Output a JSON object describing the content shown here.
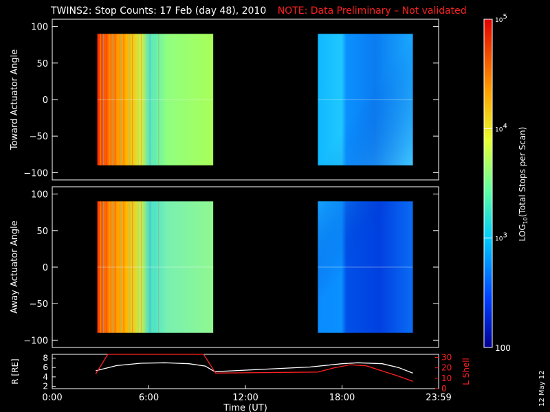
{
  "header": {
    "title": "TWINS2: Stop Counts: 17 Feb (day  48), 2010",
    "note": "NOTE: Data Preliminary – Not validated"
  },
  "stamp": "12 May 12",
  "colors": {
    "note": "#ff2020",
    "ephemeris_r": "#ffffff",
    "ephemeris_lshell": "#ff2020",
    "background": "#000000"
  },
  "chart_data": [
    {
      "type": "heatmap",
      "name": "toward",
      "ylabel": "Toward Actuator Angle",
      "ylim": [
        -110,
        110
      ],
      "y_ticks": [
        "100",
        "50",
        "0",
        "−50",
        "−100"
      ],
      "y_tick_values": [
        100,
        50,
        0,
        -50,
        -100
      ],
      "data_y_range": [
        -90,
        90
      ],
      "x_range_hours": [
        0,
        24
      ],
      "data_blocks_hours": [
        [
          2.8,
          10.0
        ],
        [
          16.5,
          22.4
        ]
      ],
      "blocks": [
        {
          "start": 2.8,
          "end": 10.0,
          "log10_counts_start": 4.85,
          "log10_counts_end": 3.7
        },
        {
          "start": 16.5,
          "end": 22.4,
          "log10_counts_start": 3.25,
          "log10_counts_end": 3.05
        }
      ],
      "log_scale": true
    },
    {
      "type": "heatmap",
      "name": "away",
      "ylabel": "Away Actuator Angle",
      "ylim": [
        -110,
        110
      ],
      "y_ticks": [
        "100",
        "50",
        "0",
        "−50",
        "−100"
      ],
      "y_tick_values": [
        100,
        50,
        0,
        -50,
        -100
      ],
      "data_y_range": [
        -90,
        90
      ],
      "x_range_hours": [
        0,
        24
      ],
      "data_blocks_hours": [
        [
          2.8,
          10.0
        ],
        [
          16.5,
          22.4
        ]
      ],
      "blocks": [
        {
          "start": 2.8,
          "end": 10.0,
          "log10_counts_start": 4.8,
          "log10_counts_end": 3.6
        },
        {
          "start": 16.5,
          "end": 22.4,
          "log10_counts_start": 3.0,
          "log10_counts_end": 2.6
        }
      ],
      "log_scale": true
    },
    {
      "type": "line",
      "name": "ephemeris",
      "ylabel": "R [RE]",
      "y2label": "L Shell",
      "xlabel": "Time (UT)",
      "x_ticks": [
        "0:00",
        "6:00",
        "12:00",
        "18:00",
        "23:59"
      ],
      "x_tick_values": [
        0,
        6,
        12,
        18,
        24
      ],
      "ylim": [
        1.5,
        8.8
      ],
      "y_ticks": [
        "8",
        "6",
        "4",
        "2"
      ],
      "y_tick_values": [
        8,
        6,
        4,
        2
      ],
      "y2lim": [
        0,
        33
      ],
      "y2_ticks": [
        "30",
        "20",
        "10",
        "0"
      ],
      "y2_tick_values": [
        30,
        20,
        10,
        0
      ],
      "series": [
        {
          "name": "R",
          "axis": "left",
          "x": [
            2.7,
            4.0,
            5.5,
            7.0,
            8.5,
            9.5,
            10.1,
            13.0,
            16.0,
            18.0,
            19.0,
            20.5,
            21.5,
            22.4
          ],
          "y": [
            5.3,
            6.4,
            6.9,
            7.0,
            6.8,
            6.3,
            5.1,
            5.6,
            6.1,
            6.8,
            7.0,
            6.8,
            6.0,
            4.8
          ]
        },
        {
          "name": "L Shell",
          "axis": "right",
          "x": [
            2.7,
            3.45,
            9.4,
            10.15,
            16.5,
            17.5,
            18.5,
            19.5,
            20.5,
            21.5,
            22.4
          ],
          "y": [
            14,
            33,
            33,
            15,
            16,
            20,
            23,
            22,
            17,
            12,
            7
          ]
        }
      ]
    }
  ],
  "colorbar": {
    "label": "LOG10(Total Stops per Scan)",
    "label_parts": [
      "LOG",
      "10",
      "(Total Stops per Scan)"
    ],
    "scale": "log",
    "range": [
      100,
      100000
    ],
    "ticks": [
      {
        "base": "10",
        "exp": "5",
        "value": 100000
      },
      {
        "base": "10",
        "exp": "4",
        "value": 10000
      },
      {
        "base": "10",
        "exp": "3",
        "value": 1000
      },
      {
        "base": "100",
        "exp": "",
        "value": 100
      }
    ]
  }
}
